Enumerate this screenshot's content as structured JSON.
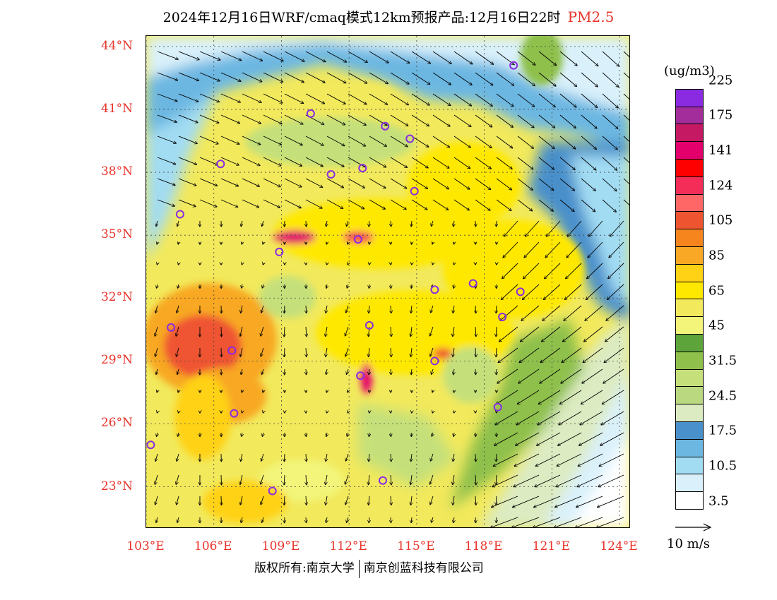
{
  "title": {
    "text": "2024年12月16日WRF/cmaq模式12km预报产品:12月16日22时",
    "variable": "PM2.5"
  },
  "map": {
    "latitude_labels": [
      "44°N",
      "41°N",
      "38°N",
      "35°N",
      "32°N",
      "29°N",
      "26°N",
      "23°N"
    ],
    "longitude_labels": [
      "103°E",
      "106°E",
      "109°E",
      "112°E",
      "115°E",
      "118°E",
      "121°E",
      "124°E"
    ],
    "extent": {
      "lon_min": 103,
      "lon_max": 124.5,
      "lat_min": 21,
      "lat_max": 44.5
    },
    "city_marker_color": "#8a2be2",
    "cities": [
      {
        "lon": 119.3,
        "lat": 43.1
      },
      {
        "lon": 110.3,
        "lat": 40.8
      },
      {
        "lon": 113.6,
        "lat": 40.2
      },
      {
        "lon": 114.7,
        "lat": 39.6
      },
      {
        "lon": 106.3,
        "lat": 38.4
      },
      {
        "lon": 111.2,
        "lat": 37.9
      },
      {
        "lon": 112.6,
        "lat": 38.2
      },
      {
        "lon": 114.9,
        "lat": 37.1
      },
      {
        "lon": 104.5,
        "lat": 36.0
      },
      {
        "lon": 112.4,
        "lat": 34.8
      },
      {
        "lon": 108.9,
        "lat": 34.2
      },
      {
        "lon": 117.5,
        "lat": 32.7
      },
      {
        "lon": 115.8,
        "lat": 32.4
      },
      {
        "lon": 119.6,
        "lat": 32.3
      },
      {
        "lon": 118.8,
        "lat": 31.1
      },
      {
        "lon": 104.1,
        "lat": 30.6
      },
      {
        "lon": 112.9,
        "lat": 30.7
      },
      {
        "lon": 106.8,
        "lat": 29.5
      },
      {
        "lon": 115.8,
        "lat": 29.0
      },
      {
        "lon": 112.5,
        "lat": 28.3
      },
      {
        "lon": 106.9,
        "lat": 26.5
      },
      {
        "lon": 118.6,
        "lat": 26.8
      },
      {
        "lon": 103.2,
        "lat": 25.0
      },
      {
        "lon": 108.6,
        "lat": 22.8
      },
      {
        "lon": 113.5,
        "lat": 23.3
      }
    ]
  },
  "legend": {
    "unit": "(ug/m3)",
    "colors": [
      "#ffffff",
      "#daf1fb",
      "#a2dcf3",
      "#6cb7e2",
      "#4a90cb",
      "#dcebc1",
      "#b9d87f",
      "#c5e07a",
      "#8ec04b",
      "#5da43a",
      "#f2f57a",
      "#f2e95c",
      "#ffe800",
      "#ffd215",
      "#f8a824",
      "#f7851d",
      "#ef5430",
      "#ff6666",
      "#f32c58",
      "#ff0000",
      "#e3006c",
      "#c51a63",
      "#a42d9c",
      "#8a2be2"
    ],
    "labels": [
      {
        "text": "225",
        "index": 22
      },
      {
        "text": "175",
        "index": 20
      },
      {
        "text": "141",
        "index": 18
      },
      {
        "text": "124",
        "index": 16
      },
      {
        "text": "105",
        "index": 14
      },
      {
        "text": "85",
        "index": 12
      },
      {
        "text": "65",
        "index": 10
      },
      {
        "text": "45",
        "index": 8
      },
      {
        "text": "31.5",
        "index": 6
      },
      {
        "text": "24.5",
        "index": 4
      },
      {
        "text": "17.5",
        "index": 2
      },
      {
        "text": "10.5",
        "index": 0
      },
      {
        "text": "3.5",
        "index": -2
      }
    ],
    "reference_vector": "10 m/s"
  },
  "footer": {
    "copyright_left": "版权所有:南京大学",
    "copyright_right": "南京创蓝科技有限公司"
  }
}
